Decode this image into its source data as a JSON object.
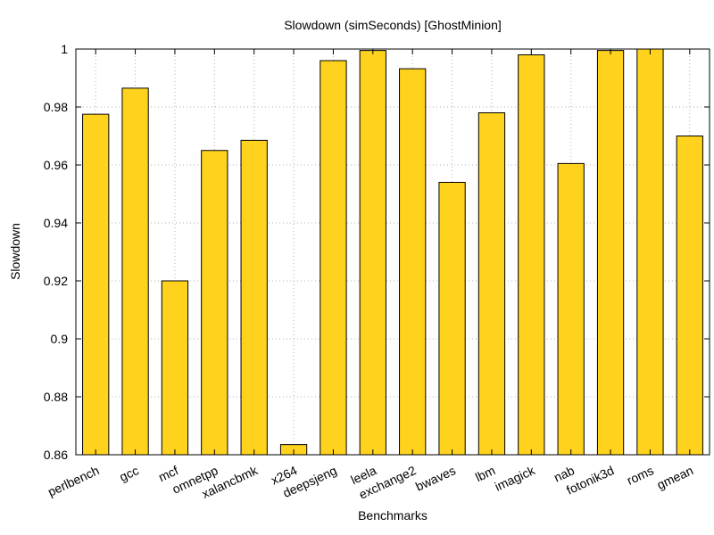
{
  "chart_data": {
    "type": "bar",
    "title": "Slowdown (simSeconds) [GhostMinion]",
    "xlabel": "Benchmarks",
    "ylabel": "Slowdown",
    "ylim": [
      0.86,
      1.0
    ],
    "yticks": [
      "0.86",
      "0.88",
      "0.9",
      "0.92",
      "0.94",
      "0.96",
      "0.98",
      "1"
    ],
    "grid": true,
    "categories": [
      "perlbench",
      "gcc",
      "mcf",
      "omnetpp",
      "xalancbmk",
      "x264",
      "deepsjeng",
      "leela",
      "exchange2",
      "bwaves",
      "lbm",
      "imagick",
      "nab",
      "fotonik3d",
      "roms",
      "gmean"
    ],
    "values": [
      0.9775,
      0.9865,
      0.92,
      0.965,
      0.9685,
      0.8635,
      0.996,
      0.9995,
      0.9932,
      0.954,
      0.978,
      0.998,
      0.9605,
      0.9995,
      1.0,
      0.97
    ],
    "bar_color": "#FFD21E",
    "bar_stroke": "#000000",
    "grid_color": "#B0B0B0"
  }
}
